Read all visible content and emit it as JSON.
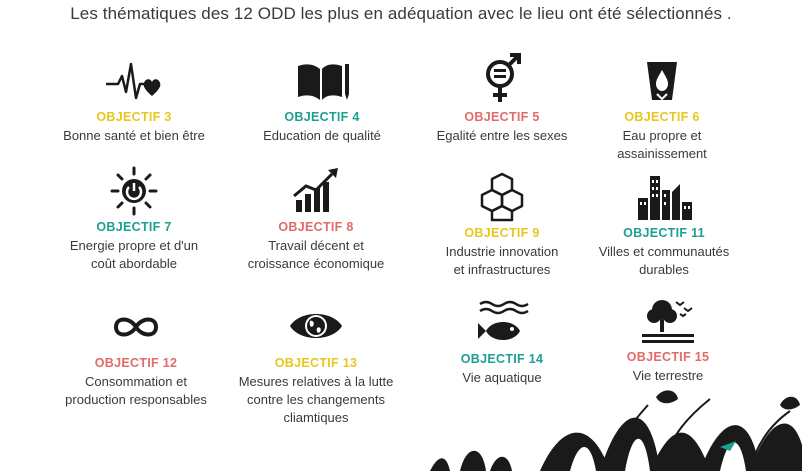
{
  "header": {
    "text": "Les thématiques des 12 ODD les plus en adéquation avec le lieu ont été sélectionnés ."
  },
  "colors": {
    "yellow": "#e8c61f",
    "teal": "#1d9f91",
    "coral": "#e26a6a",
    "icon": "#1a1a1a"
  },
  "goals": [
    {
      "label": "OBJECTIF 3",
      "desc": [
        "Bonne santé et bien être"
      ],
      "icon": "heartbeat-icon",
      "color": "#e8c61f"
    },
    {
      "label": "OBJECTIF 4",
      "desc": [
        "Education de qualité"
      ],
      "icon": "book-pencil-icon",
      "color": "#1d9f91"
    },
    {
      "label": "OBJECTIF 5",
      "desc": [
        "Egalité entre les sexes"
      ],
      "icon": "gender-equality-icon",
      "color": "#e26a6a"
    },
    {
      "label": "OBJECTIF 6",
      "desc": [
        "Eau propre et",
        "assainissement"
      ],
      "icon": "water-glass-icon",
      "color": "#e8c61f"
    },
    {
      "label": "OBJECTIF 7",
      "desc": [
        "Energie propre et d'un",
        "coût abordable"
      ],
      "icon": "sun-power-icon",
      "color": "#1d9f91"
    },
    {
      "label": "OBJECTIF 8",
      "desc": [
        "Travail décent et",
        "croissance économique"
      ],
      "icon": "growth-chart-icon",
      "color": "#e26a6a"
    },
    {
      "label": "OBJECTIF 9",
      "desc": [
        "Industrie innovation",
        "et infrastructures"
      ],
      "icon": "cubes-icon",
      "color": "#e8c61f"
    },
    {
      "label": "OBJECTIF 11",
      "desc": [
        "Villes et communautés",
        "durables"
      ],
      "icon": "city-buildings-icon",
      "color": "#1d9f91"
    },
    {
      "label": "OBJECTIF 12",
      "desc": [
        "Consommation et",
        "production responsables"
      ],
      "icon": "infinity-icon",
      "color": "#e26a6a"
    },
    {
      "label": "OBJECTIF 13",
      "desc": [
        "Mesures relatives à la lutte",
        "contre les changements",
        "cliamtiques"
      ],
      "icon": "eye-globe-icon",
      "color": "#e8c61f"
    },
    {
      "label": "OBJECTIF 14",
      "desc": [
        "Vie aquatique"
      ],
      "icon": "fish-waves-icon",
      "color": "#1d9f91"
    },
    {
      "label": "OBJECTIF 15",
      "desc": [
        "Vie terrestre"
      ],
      "icon": "tree-birds-icon",
      "color": "#e26a6a"
    }
  ]
}
